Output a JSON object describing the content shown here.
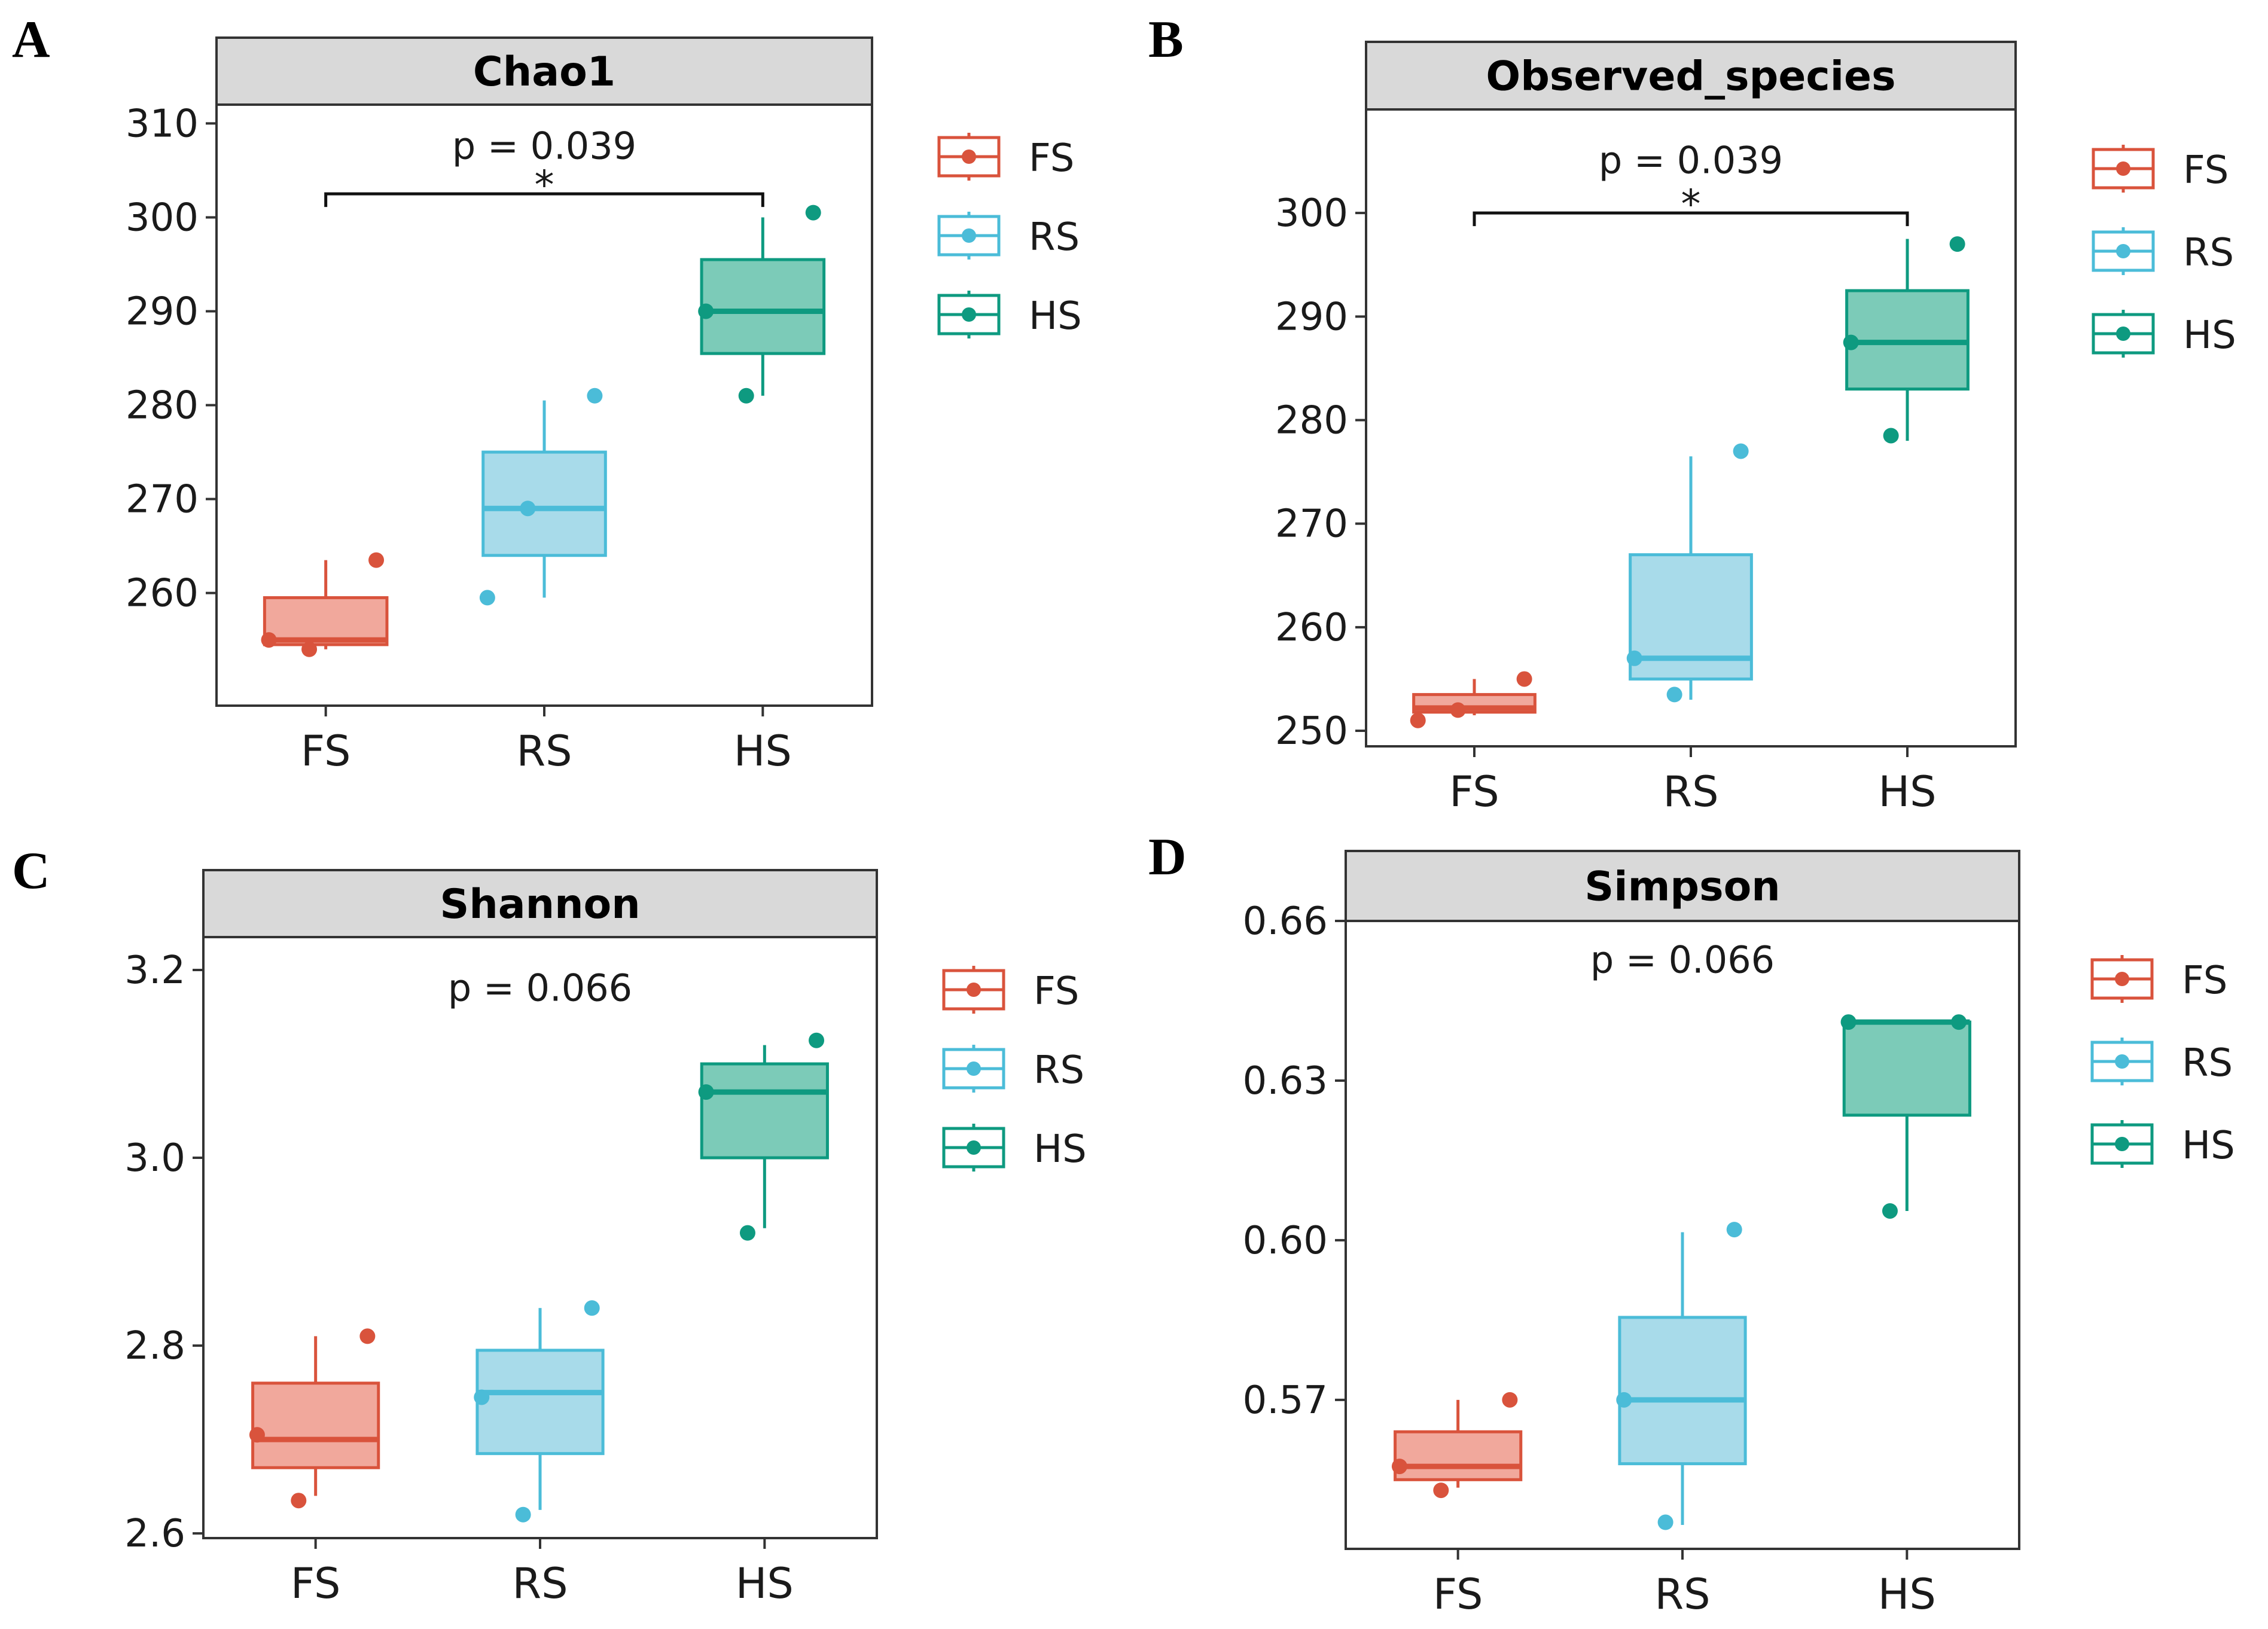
{
  "colors": {
    "FS": "#d9533c",
    "RS": "#4bbcd8",
    "HS": "#0e9a80",
    "FS_fill": "#f1a89c",
    "RS_fill": "#a8dbea",
    "HS_fill": "#7ccbb8",
    "strip": "#d9d9d9"
  },
  "chart_data": [
    {
      "type": "box",
      "panel": "A",
      "title": "Chao1",
      "categories": [
        "FS",
        "RS",
        "HS"
      ],
      "ylim": [
        248,
        312
      ],
      "yticks": [
        260,
        270,
        280,
        290,
        300,
        310
      ],
      "ytick_labels": [
        "260",
        "270",
        "280",
        "290",
        "300",
        "310"
      ],
      "boxes": [
        {
          "name": "FS",
          "whisker_low": 254,
          "q1": 254.5,
          "median": 255,
          "q3": 259.5,
          "whisker_high": 263.5,
          "points": [
            255,
            254,
            263.5
          ]
        },
        {
          "name": "RS",
          "whisker_low": 259.5,
          "q1": 264,
          "median": 269,
          "q3": 275,
          "whisker_high": 280.5,
          "points": [
            259.5,
            269,
            281
          ]
        },
        {
          "name": "HS",
          "whisker_low": 281,
          "q1": 285.5,
          "median": 290,
          "q3": 295.5,
          "whisker_high": 300,
          "points": [
            290,
            281,
            300.5
          ]
        }
      ],
      "annotation": {
        "text": "p = 0.039",
        "y": 307.5
      },
      "bracket": {
        "from": "FS",
        "to": "HS",
        "y": 302.5,
        "label": "*"
      },
      "legend": [
        "FS",
        "RS",
        "HS"
      ]
    },
    {
      "type": "box",
      "panel": "B",
      "title": "Observed_species",
      "categories": [
        "FS",
        "RS",
        "HS"
      ],
      "ylim": [
        248.5,
        310
      ],
      "yticks": [
        250,
        260,
        270,
        280,
        290,
        300
      ],
      "ytick_labels": [
        "250",
        "260",
        "270",
        "280",
        "290",
        "300"
      ],
      "boxes": [
        {
          "name": "FS",
          "whisker_low": 251.5,
          "q1": 251.8,
          "median": 252.2,
          "q3": 253.5,
          "whisker_high": 255,
          "points": [
            251,
            252,
            255
          ]
        },
        {
          "name": "RS",
          "whisker_low": 253,
          "q1": 255,
          "median": 257,
          "q3": 267,
          "whisker_high": 276.5,
          "points": [
            257,
            253.5,
            277
          ]
        },
        {
          "name": "HS",
          "whisker_low": 278,
          "q1": 283,
          "median": 287.5,
          "q3": 292.5,
          "whisker_high": 297.5,
          "points": [
            287.5,
            278.5,
            297
          ]
        },
        {
          "name": "_",
          "hidden": true
        }
      ],
      "annotation": {
        "text": "p = 0.039",
        "y": 305
      },
      "bracket": {
        "from": "FS",
        "to": "HS",
        "y": 300,
        "label": "*"
      },
      "legend": [
        "FS",
        "RS",
        "HS"
      ]
    },
    {
      "type": "box",
      "panel": "C",
      "title": "Shannon",
      "categories": [
        "FS",
        "RS",
        "HS"
      ],
      "ylim": [
        2.595,
        3.235
      ],
      "yticks": [
        2.6,
        2.8,
        3.0,
        3.2
      ],
      "ytick_labels": [
        "2.6",
        "2.8",
        "3.0",
        "3.2"
      ],
      "boxes": [
        {
          "name": "FS",
          "whisker_low": 2.64,
          "q1": 2.67,
          "median": 2.7,
          "q3": 2.76,
          "whisker_high": 2.81,
          "points": [
            2.705,
            2.635,
            2.81
          ]
        },
        {
          "name": "RS",
          "whisker_low": 2.625,
          "q1": 2.685,
          "median": 2.75,
          "q3": 2.795,
          "whisker_high": 2.84,
          "points": [
            2.745,
            2.62,
            2.84
          ]
        },
        {
          "name": "HS",
          "whisker_low": 2.925,
          "q1": 3.0,
          "median": 3.07,
          "q3": 3.1,
          "whisker_high": 3.12,
          "points": [
            3.07,
            2.92,
            3.125
          ]
        }
      ],
      "annotation": {
        "text": "p = 0.066",
        "y": 3.18
      },
      "legend": [
        "FS",
        "RS",
        "HS"
      ]
    },
    {
      "type": "box",
      "panel": "D",
      "title": "Simpson",
      "categories": [
        "FS",
        "RS",
        "HS"
      ],
      "ylim": [
        0.542,
        0.66
      ],
      "yticks": [
        0.57,
        0.6,
        0.63,
        0.66
      ],
      "ytick_labels": [
        "0.57",
        "0.60",
        "0.63",
        "0.66"
      ],
      "boxes": [
        {
          "name": "FS",
          "whisker_low": 0.5535,
          "q1": 0.555,
          "median": 0.5575,
          "q3": 0.564,
          "whisker_high": 0.57,
          "points": [
            0.5575,
            0.553,
            0.57
          ]
        },
        {
          "name": "RS",
          "whisker_low": 0.5465,
          "q1": 0.558,
          "median": 0.57,
          "q3": 0.5855,
          "whisker_high": 0.6015,
          "points": [
            0.57,
            0.547,
            0.602
          ]
        },
        {
          "name": "HS",
          "whisker_low": 0.6055,
          "q1": 0.6235,
          "median": 0.641,
          "q3": 0.641,
          "whisker_high": 0.641,
          "points": [
            0.641,
            0.6055,
            0.641
          ]
        }
      ],
      "annotation": {
        "text": "p = 0.066",
        "y": 0.6525
      },
      "legend": [
        "FS",
        "RS",
        "HS"
      ]
    }
  ]
}
